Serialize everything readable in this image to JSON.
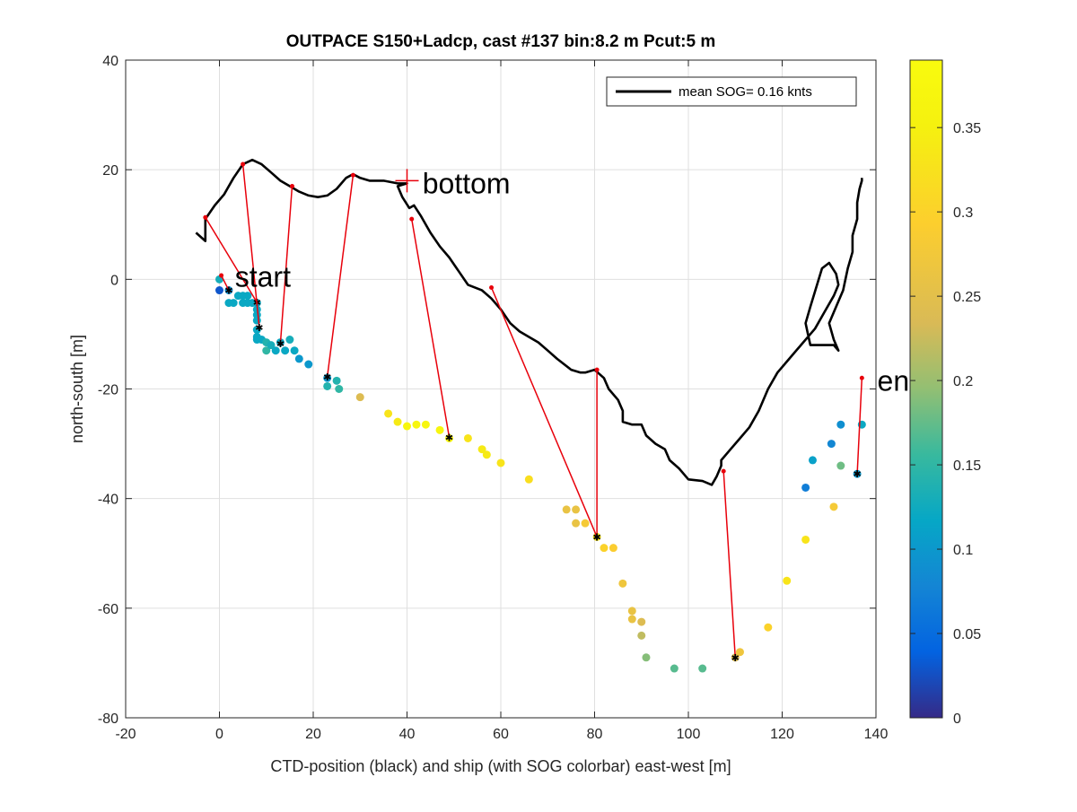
{
  "chart_data": {
    "type": "scatter",
    "title": "OUTPACE S150+Ladcp, cast #137 bin:8.2 m  Pcut:5 m",
    "xlabel": "CTD-position (black) and ship (with SOG colorbar) east-west [m]",
    "ylabel": "north-south [m]",
    "xlim": [
      -20,
      140
    ],
    "ylim": [
      -80,
      40
    ],
    "xticks": [
      -20,
      0,
      20,
      40,
      60,
      80,
      100,
      120,
      140
    ],
    "yticks": [
      -80,
      -60,
      -40,
      -20,
      0,
      20,
      40
    ],
    "xtick_labels": [
      "-20",
      "0",
      "20",
      "40",
      "60",
      "80",
      "100",
      "120",
      "140"
    ],
    "ytick_labels": [
      "-80",
      "-60",
      "-40",
      "-20",
      "0",
      "20",
      "40"
    ],
    "grid": true,
    "legend": {
      "position": "top-right",
      "entries": [
        "mean SOG=  0.16 knts"
      ]
    },
    "annotations": [
      {
        "text": "start",
        "x": 1,
        "y": 0.5
      },
      {
        "text": "bottom",
        "x": 41,
        "y": 17.5
      },
      {
        "text": "en",
        "x": 138,
        "y": -18.5
      }
    ],
    "bottom_marker": {
      "x": 40,
      "y": 18
    },
    "colorbar": {
      "colormap": "parula",
      "range": [
        0,
        0.39
      ],
      "ticks": [
        0,
        0.05,
        0.1,
        0.15,
        0.2,
        0.25,
        0.3,
        0.35
      ],
      "tick_labels": [
        "0",
        "0.05",
        "0.1",
        "0.15",
        "0.2",
        "0.25",
        "0.3",
        "0.35"
      ]
    },
    "ctd_track": {
      "color": "#000000",
      "points": [
        [
          -5,
          8.5
        ],
        [
          -3,
          7
        ],
        [
          -3,
          11
        ],
        [
          -1,
          13.5
        ],
        [
          1,
          15.5
        ],
        [
          3,
          18.5
        ],
        [
          5,
          21
        ],
        [
          7,
          21.8
        ],
        [
          9,
          21
        ],
        [
          11,
          19.5
        ],
        [
          13,
          18
        ],
        [
          15,
          17
        ],
        [
          17,
          16
        ],
        [
          19,
          15.3
        ],
        [
          21,
          15
        ],
        [
          23,
          15.3
        ],
        [
          25,
          16.5
        ],
        [
          27,
          18.5
        ],
        [
          28.5,
          19.2
        ],
        [
          30,
          18.5
        ],
        [
          32,
          18
        ],
        [
          35,
          18
        ],
        [
          38,
          17.5
        ],
        [
          40,
          17.5
        ],
        [
          38,
          17
        ],
        [
          39,
          15
        ],
        [
          40.5,
          13
        ],
        [
          41.5,
          13.5
        ],
        [
          43,
          11.5
        ],
        [
          45,
          8.5
        ],
        [
          47,
          6
        ],
        [
          49,
          4
        ],
        [
          51,
          1.5
        ],
        [
          53,
          -1
        ],
        [
          56,
          -2
        ],
        [
          58,
          -3.5
        ],
        [
          60,
          -5.5
        ],
        [
          62,
          -8
        ],
        [
          64,
          -9.5
        ],
        [
          66,
          -10.5
        ],
        [
          68,
          -11.5
        ],
        [
          70,
          -13
        ],
        [
          72,
          -14.5
        ],
        [
          75,
          -16.5
        ],
        [
          77,
          -17
        ],
        [
          78,
          -17
        ],
        [
          80,
          -16.5
        ],
        [
          82,
          -18
        ],
        [
          83,
          -20
        ],
        [
          85,
          -22
        ],
        [
          86,
          -24
        ],
        [
          86,
          -26
        ],
        [
          88,
          -26.5
        ],
        [
          90,
          -26.5
        ],
        [
          91,
          -28.5
        ],
        [
          93,
          -30
        ],
        [
          95,
          -31
        ],
        [
          96,
          -33
        ],
        [
          98,
          -34.5
        ],
        [
          99,
          -35.5
        ],
        [
          100,
          -36.5
        ],
        [
          103,
          -36.8
        ],
        [
          105,
          -37.5
        ],
        [
          106,
          -36
        ],
        [
          107,
          -34
        ],
        [
          107,
          -33
        ],
        [
          109,
          -31
        ],
        [
          111,
          -29
        ],
        [
          113,
          -27
        ],
        [
          115,
          -24
        ],
        [
          117,
          -20
        ],
        [
          119,
          -17
        ],
        [
          121,
          -15
        ],
        [
          124,
          -12
        ],
        [
          127,
          -9
        ],
        [
          129,
          -6
        ],
        [
          131,
          -3
        ],
        [
          132,
          -1
        ],
        [
          131.5,
          1
        ],
        [
          130,
          3
        ],
        [
          128.5,
          2
        ],
        [
          126,
          -5
        ],
        [
          125,
          -8
        ],
        [
          125.5,
          -10
        ],
        [
          126,
          -12
        ],
        [
          128,
          -12
        ],
        [
          131,
          -12
        ],
        [
          132,
          -13
        ],
        [
          131,
          -11
        ],
        [
          130,
          -8
        ],
        [
          131,
          -6
        ],
        [
          132,
          -4
        ],
        [
          133,
          -2
        ],
        [
          133.5,
          0
        ],
        [
          134,
          2
        ],
        [
          135,
          5
        ],
        [
          135,
          8
        ],
        [
          136,
          11
        ],
        [
          136,
          14
        ],
        [
          136.5,
          16.5
        ],
        [
          137,
          18
        ],
        [
          137,
          18.5
        ]
      ]
    },
    "ship_points": [
      [
        0,
        0,
        0.13
      ],
      [
        0,
        -2,
        0.03
      ],
      [
        2,
        -2,
        0.09
      ],
      [
        2,
        -4.3,
        0.12
      ],
      [
        3,
        -4.3,
        0.12
      ],
      [
        4,
        -3,
        0.12
      ],
      [
        5,
        -3,
        0.12
      ],
      [
        5,
        -4.3,
        0.12
      ],
      [
        6,
        -3,
        0.12
      ],
      [
        6,
        -4.3,
        0.12
      ],
      [
        7,
        -4.3,
        0.12
      ],
      [
        8,
        -4.3,
        0.12
      ],
      [
        8,
        -5.5,
        0.12
      ],
      [
        8,
        -6.5,
        0.12
      ],
      [
        8,
        -7.5,
        0.12
      ],
      [
        8,
        -9.2,
        0.12
      ],
      [
        8,
        -10.5,
        0.12
      ],
      [
        8,
        -11,
        0.12
      ],
      [
        9,
        -11,
        0.12
      ],
      [
        10,
        -11.5,
        0.14
      ],
      [
        10,
        -13,
        0.15
      ],
      [
        11,
        -12,
        0.13
      ],
      [
        12,
        -13,
        0.12
      ],
      [
        13,
        -11.5,
        0.12
      ],
      [
        14,
        -13,
        0.12
      ],
      [
        15,
        -11,
        0.13
      ],
      [
        16,
        -13,
        0.12
      ],
      [
        17,
        -14.5,
        0.1
      ],
      [
        19,
        -15.5,
        0.1
      ],
      [
        23,
        -18,
        0.1
      ],
      [
        23,
        -19.5,
        0.14
      ],
      [
        25,
        -18.5,
        0.14
      ],
      [
        25.5,
        -20,
        0.15
      ],
      [
        30,
        -21.5,
        0.24
      ],
      [
        36,
        -24.5,
        0.33
      ],
      [
        38,
        -26,
        0.34
      ],
      [
        40,
        -26.8,
        0.37
      ],
      [
        42,
        -26.5,
        0.37
      ],
      [
        44,
        -26.5,
        0.37
      ],
      [
        47,
        -27.5,
        0.37
      ],
      [
        49,
        -29,
        0.36
      ],
      [
        53,
        -29,
        0.33
      ],
      [
        56,
        -31,
        0.34
      ],
      [
        57,
        -32,
        0.34
      ],
      [
        60,
        -33.5,
        0.33
      ],
      [
        66,
        -36.5,
        0.32
      ],
      [
        74,
        -42,
        0.26
      ],
      [
        76,
        -42,
        0.26
      ],
      [
        76,
        -44.5,
        0.26
      ],
      [
        78,
        -44.5,
        0.28
      ],
      [
        80.5,
        -47,
        0.33
      ],
      [
        82,
        -49,
        0.3
      ],
      [
        84,
        -49,
        0.29
      ],
      [
        86,
        -55.5,
        0.27
      ],
      [
        88,
        -60.5,
        0.26
      ],
      [
        88,
        -62,
        0.26
      ],
      [
        90,
        -62.5,
        0.24
      ],
      [
        90,
        -65,
        0.22
      ],
      [
        91,
        -69,
        0.19
      ],
      [
        97,
        -71,
        0.17
      ],
      [
        103,
        -71,
        0.17
      ],
      [
        110,
        -69,
        0.24
      ],
      [
        111,
        -68,
        0.27
      ],
      [
        117,
        -63.5,
        0.3
      ],
      [
        121,
        -55,
        0.33
      ],
      [
        125,
        -47.5,
        0.33
      ],
      [
        131,
        -41.5,
        0.28
      ],
      [
        132.5,
        -34,
        0.18
      ],
      [
        126.5,
        -33,
        0.11
      ],
      [
        125,
        -38,
        0.07
      ],
      [
        130.5,
        -30,
        0.08
      ],
      [
        132.5,
        -26.5,
        0.09
      ],
      [
        136,
        -35.5,
        0.1
      ],
      [
        137,
        -26.5,
        0.12
      ]
    ],
    "connectors": {
      "color": "#e8000b",
      "pairs": [
        [
          [
            0.4,
            0.7
          ],
          [
            2,
            -2
          ]
        ],
        [
          [
            -3,
            11.3
          ],
          [
            8,
            -4.2
          ]
        ],
        [
          [
            5,
            21
          ],
          [
            8.5,
            -8.8
          ]
        ],
        [
          [
            15.5,
            17
          ],
          [
            13,
            -11.7
          ]
        ],
        [
          [
            28.5,
            19
          ],
          [
            23,
            -17.8
          ]
        ],
        [
          [
            41,
            11
          ],
          [
            49,
            -28.8
          ]
        ],
        [
          [
            58,
            -1.5
          ],
          [
            80.5,
            -47
          ]
        ],
        [
          [
            80.5,
            -16.5
          ],
          [
            80.5,
            -47
          ]
        ],
        [
          [
            107.5,
            -35
          ],
          [
            110,
            -69
          ]
        ],
        [
          [
            137,
            -18
          ],
          [
            136,
            -35.5
          ]
        ]
      ]
    }
  }
}
